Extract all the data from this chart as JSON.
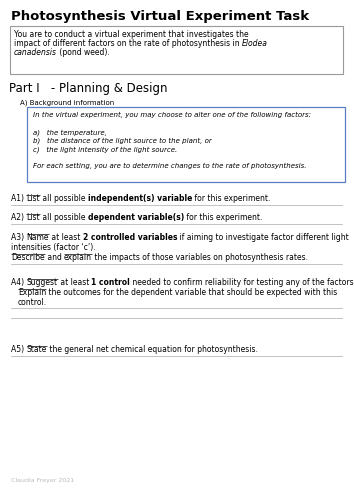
{
  "title": "Photosynthesis Virtual Experiment Task",
  "part_heading": "Part I   - Planning & Design",
  "bg_label": "A) Background information",
  "info_box_lines": [
    "In the virtual experiment, you may choose to alter one of the following factors:",
    "",
    "a)   the temperature,",
    "b)   the distance of the light source to the plant, or",
    "c)   the light intensity of the light source.",
    "",
    "For each setting, you are to determine changes to the rate of photosynthesis."
  ],
  "footer": "Claudia Freyer 2021",
  "bg_color": "#ffffff",
  "text_color": "#000000",
  "box_border_color": "#999999",
  "info_box_border_color": "#5b7fc4",
  "line_color": "#aaaaaa",
  "title_fontsize": 9.5,
  "part_fontsize": 8.5,
  "body_fontsize": 5.5,
  "small_fontsize": 5.0,
  "footer_fontsize": 4.5
}
